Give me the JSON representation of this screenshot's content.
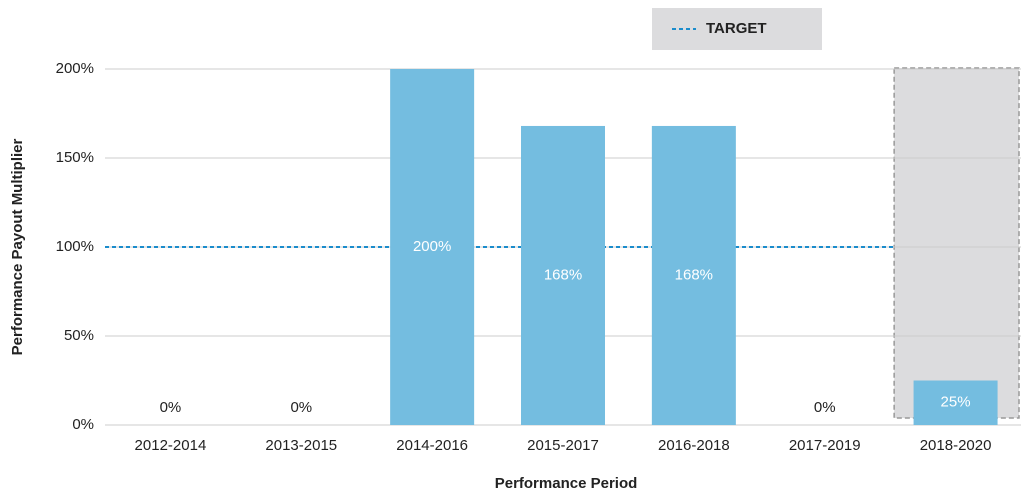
{
  "chart_data": {
    "type": "bar",
    "categories": [
      "2012-2014",
      "2013-2015",
      "2014-2016",
      "2015-2017",
      "2016-2018",
      "2017-2019",
      "2018-2020"
    ],
    "values": [
      0,
      0,
      200,
      168,
      168,
      0,
      25
    ],
    "value_labels": [
      "0%",
      "0%",
      "200%",
      "168%",
      "168%",
      "0%",
      "25%"
    ],
    "color": "#74bde0",
    "ylim": [
      0,
      200
    ],
    "yticks": [
      {
        "value": 0,
        "label": "0%"
      },
      {
        "value": 50,
        "label": "50%"
      },
      {
        "value": 100,
        "label": "100%"
      },
      {
        "value": 150,
        "label": "150%"
      },
      {
        "value": 200,
        "label": "200%"
      }
    ],
    "grid": true,
    "xlabel": "Performance Period",
    "ylabel": "Performance Payout Multiplier",
    "target": {
      "name": "TARGET",
      "value": 100,
      "color": "#1a8ccc"
    },
    "highlight_category": "2018-2020"
  }
}
